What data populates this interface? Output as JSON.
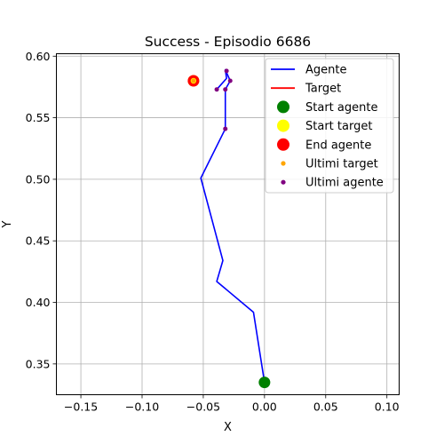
{
  "chart_data": {
    "type": "scatter",
    "title": "Success - Episodio 6686",
    "xlabel": "X",
    "ylabel": "Y",
    "xlim": [
      -0.17,
      0.11
    ],
    "ylim": [
      0.325,
      0.602
    ],
    "xticks": [
      -0.15,
      -0.1,
      -0.05,
      0.0,
      0.05,
      0.1
    ],
    "xtick_labels": [
      "−0.15",
      "−0.10",
      "−0.05",
      "0.00",
      "0.05",
      "0.10"
    ],
    "yticks": [
      0.35,
      0.4,
      0.45,
      0.5,
      0.55,
      0.6
    ],
    "ytick_labels": [
      "0.35",
      "0.40",
      "0.45",
      "0.50",
      "0.55",
      "0.60"
    ],
    "grid": true,
    "legend_position": "top-right",
    "series": [
      {
        "name": "Agente",
        "kind": "line",
        "color": "#0000ff",
        "points": [
          [
            0.0,
            0.335
          ],
          [
            -0.009,
            0.392
          ],
          [
            -0.039,
            0.417
          ],
          [
            -0.034,
            0.434
          ],
          [
            -0.052,
            0.501
          ],
          [
            -0.032,
            0.541
          ],
          [
            -0.032,
            0.573
          ],
          [
            -0.028,
            0.58
          ],
          [
            -0.032,
            0.589
          ],
          [
            -0.031,
            0.582
          ],
          [
            -0.039,
            0.573
          ]
        ]
      },
      {
        "name": "Target",
        "kind": "line",
        "color": "#ff0000",
        "points": [
          [
            -0.058,
            0.58
          ]
        ]
      },
      {
        "name": "Start agente",
        "kind": "marker",
        "color": "#008000",
        "points": [
          [
            0.0,
            0.335
          ]
        ]
      },
      {
        "name": "Start target",
        "kind": "marker",
        "color": "#ffff00",
        "points": [
          [
            -0.058,
            0.58
          ]
        ]
      },
      {
        "name": "End agente",
        "kind": "marker",
        "color": "#ff0000",
        "points": [
          [
            -0.058,
            0.58
          ]
        ]
      },
      {
        "name": "Ultimi target",
        "kind": "dot",
        "color": "#ffa500",
        "points": [
          [
            -0.058,
            0.58
          ]
        ]
      },
      {
        "name": "Ultimi agente",
        "kind": "dot",
        "color": "#800080",
        "points": [
          [
            -0.032,
            0.541
          ],
          [
            -0.032,
            0.573
          ],
          [
            -0.039,
            0.573
          ],
          [
            -0.028,
            0.58
          ],
          [
            -0.031,
            0.588
          ]
        ]
      }
    ]
  }
}
